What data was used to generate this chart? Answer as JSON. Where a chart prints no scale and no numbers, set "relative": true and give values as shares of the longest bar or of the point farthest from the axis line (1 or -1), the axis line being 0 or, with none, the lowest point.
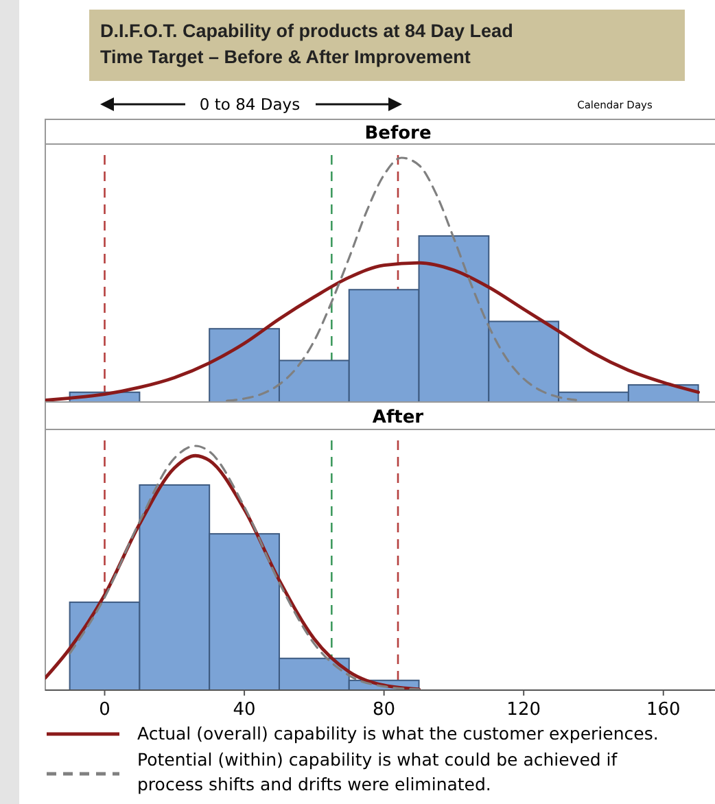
{
  "chart_data": [
    {
      "type": "histogram",
      "title": "D.I.F.O.T. Capability of products at 84 Day Lead Time Target – Before & After Improvement",
      "subtitle": "Before",
      "annotations": [
        "0 to 84 Days",
        "Calendar Days"
      ],
      "relative": true,
      "tick_labels": false,
      "xlim": [
        -17,
        174
      ],
      "bins": [
        -10,
        10,
        30,
        50,
        70,
        90,
        110,
        130,
        150,
        170
      ],
      "values": [
        0.04,
        0,
        0.3,
        0.17,
        0.46,
        0.68,
        0.33,
        0.04,
        0.07
      ],
      "color": "#7ba3d6",
      "ref_lines": [
        {
          "axis": "x",
          "value": 0,
          "color": "#b5403f",
          "line_style": "dashed"
        },
        {
          "axis": "x",
          "value": 65,
          "color": "#3f9a5f",
          "line_style": "dashed"
        },
        {
          "axis": "x",
          "value": 84,
          "color": "#b5403f",
          "line_style": "dashed"
        }
      ],
      "series": [
        {
          "type": "line",
          "color": "#8b1a1a",
          "line_style": "solid",
          "x": [
            -17,
            -10,
            0,
            10,
            20,
            30,
            40,
            50,
            60,
            70,
            80,
            90,
            100,
            110,
            120,
            130,
            140,
            150,
            160,
            170
          ],
          "values": [
            0.007,
            0.016,
            0.032,
            0.06,
            0.1,
            0.16,
            0.24,
            0.34,
            0.43,
            0.51,
            0.56,
            0.57,
            0.54,
            0.47,
            0.38,
            0.29,
            0.2,
            0.13,
            0.08,
            0.04
          ]
        },
        {
          "type": "line",
          "color": "#808080",
          "line_style": "dashed",
          "x": [
            35,
            40,
            45,
            50,
            55,
            60,
            65,
            70,
            75,
            80,
            85,
            90,
            95,
            100,
            105,
            110,
            115,
            120,
            125,
            130,
            135
          ],
          "values": [
            0.005,
            0.014,
            0.033,
            0.072,
            0.14,
            0.25,
            0.41,
            0.59,
            0.78,
            0.93,
            1,
            0.97,
            0.85,
            0.67,
            0.48,
            0.31,
            0.18,
            0.095,
            0.046,
            0.02,
            0.008
          ]
        }
      ]
    },
    {
      "type": "histogram",
      "title": "After",
      "relative": true,
      "tick_labels": "x",
      "xlim": [
        -17,
        174
      ],
      "xticks": [
        0,
        40,
        80,
        120,
        160
      ],
      "legend": "bottom",
      "bins": [
        -10,
        10,
        30,
        50,
        70,
        90,
        110,
        130,
        150,
        170
      ],
      "values": [
        0.36,
        0.84,
        0.64,
        0.13,
        0.04,
        0,
        0,
        0,
        0
      ],
      "color": "#7ba3d6",
      "ref_lines": [
        {
          "axis": "x",
          "value": 0,
          "color": "#b5403f",
          "line_style": "dashed"
        },
        {
          "axis": "x",
          "value": 65,
          "color": "#3f9a5f",
          "line_style": "dashed"
        },
        {
          "axis": "x",
          "value": 84,
          "color": "#b5403f",
          "line_style": "dashed"
        }
      ],
      "series": [
        {
          "type": "line",
          "name": "Actual (overall) capability is what the customer experiences.",
          "color": "#8b1a1a",
          "line_style": "solid",
          "x": [
            -17,
            -10,
            0,
            10,
            20,
            26,
            30,
            40,
            50,
            60,
            70,
            80,
            90
          ],
          "values": [
            0.05,
            0.17,
            0.39,
            0.68,
            0.91,
            0.96,
            0.94,
            0.74,
            0.45,
            0.21,
            0.075,
            0.02,
            0.004
          ]
        },
        {
          "type": "line",
          "name": "Potential (within) capability is what could be achieved if process shifts and drifts were eliminated.",
          "color": "#808080",
          "line_style": "dashed",
          "x": [
            -10,
            0,
            10,
            20,
            26,
            30,
            40,
            50,
            60,
            70,
            80,
            90
          ],
          "values": [
            0.15,
            0.38,
            0.69,
            0.95,
            1,
            0.977,
            0.75,
            0.44,
            0.19,
            0.06,
            0.015,
            0.003
          ]
        }
      ]
    }
  ]
}
